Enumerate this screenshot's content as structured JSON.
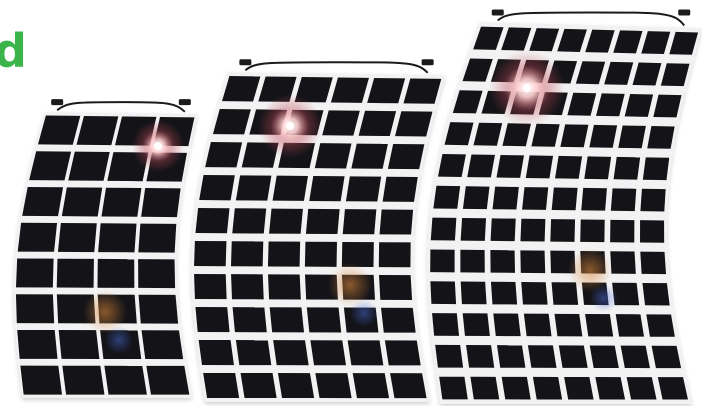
{
  "brand": {
    "fragment_text": "d",
    "color": "#3bb54a"
  },
  "scene": {
    "background": "#ffffff",
    "cell_color": "#141418",
    "busbar_color": "#f4f4f6",
    "junction_color": "#1b1b1b",
    "glare_color": "#ffd0d0"
  },
  "panels": [
    {
      "name": "small-solar-panel",
      "cols": 4,
      "rows": 8
    },
    {
      "name": "medium-solar-panel",
      "cols": 6,
      "rows": 10
    },
    {
      "name": "large-solar-panel",
      "cols": 8,
      "rows": 12
    }
  ]
}
